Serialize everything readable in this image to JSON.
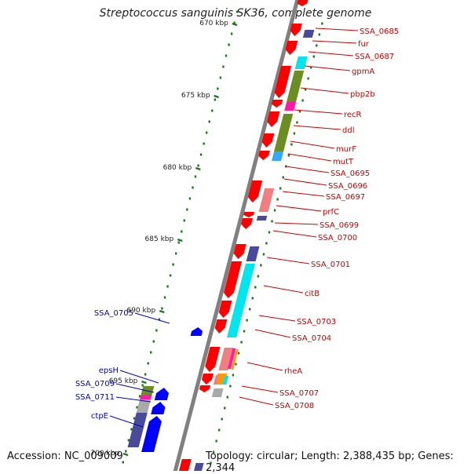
{
  "title": "Streptococcus sanguinis SK36, complete genome",
  "accession": "Accession: NC_009009",
  "summary": "Topology: circular; Length: 2,388,435 bp; Genes: 2,344",
  "colors": {
    "backbone": "#808080",
    "forward_label": "#cc0000",
    "reverse_label": "#0000cc",
    "tick": "#1a7a1a",
    "red": "#ff0000",
    "navy": "#4a4a9a",
    "olive": "#6b8e23",
    "cyan": "#00e5ee",
    "magenta": "#ff1aa8",
    "pink": "#f08080",
    "light_blue": "#33aaff",
    "blue": "#0000ff",
    "gray": "#a9a9a9",
    "orange": "#ff9900"
  },
  "scale": {
    "ticks": [
      "670 kbp",
      "675 kbp",
      "680 kbp",
      "685 kbp",
      "690 kbp",
      "695 kbp",
      "700 kbp"
    ]
  },
  "forward_genes": [
    "SSA_0685",
    "fur",
    "SSA_0687",
    "gpmA",
    "pbp2b",
    "recR",
    "ddl",
    "murF",
    "mutT",
    "SSA_0695",
    "SSA_0696",
    "SSA_0697",
    "prfC",
    "SSA_0699",
    "SSA_0700",
    "SSA_0701",
    "citB",
    "SSA_0703",
    "SSA_0704",
    "rheA",
    "SSA_0707",
    "SSA_0708"
  ],
  "reverse_genes": [
    "SSA_0705",
    "epsH",
    "SSA_0709",
    "SSA_0711",
    "ctpE"
  ]
}
